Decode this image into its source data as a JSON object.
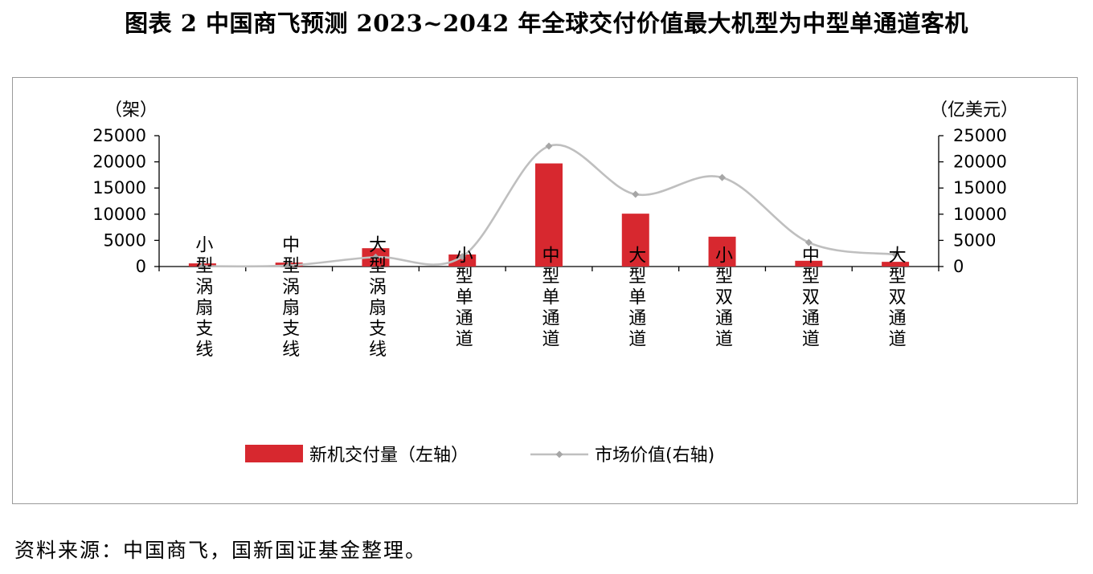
{
  "figure": {
    "title": "图表 2 中国商飞预测 2023~2042 年全球交付价值最大机型为中型单通道客机",
    "source": "资料来源：中国商飞，国新国证基金整理。"
  },
  "chart_data": {
    "type": "bar",
    "title": "",
    "categories": [
      "小型涡扇支线",
      "中型涡扇支线",
      "大型涡扇支线",
      "小型单通道",
      "中型单通道",
      "大型单通道",
      "小型双通道",
      "中型双通道",
      "大型双通道"
    ],
    "y_left": {
      "unit": "（架）",
      "ylim": [
        0,
        25000
      ],
      "ticks": [
        0,
        5000,
        10000,
        15000,
        20000,
        25000
      ]
    },
    "y_right": {
      "unit": "（亿美元）",
      "ylim": [
        0,
        25000
      ],
      "ticks": [
        0,
        5000,
        10000,
        15000,
        20000,
        25000
      ]
    },
    "series": [
      {
        "name": "新机交付量（左轴）",
        "type": "bar",
        "axis": "left",
        "color": "#d7282f",
        "values": [
          600,
          750,
          3500,
          2300,
          19700,
          10100,
          5700,
          1100,
          900
        ]
      },
      {
        "name": "市场价值(右轴)",
        "type": "line",
        "axis": "right",
        "color": "#bfbfbf",
        "marker_color": "#a6a6a6",
        "values": [
          50,
          200,
          1800,
          1900,
          23000,
          13800,
          17000,
          4600,
          2300
        ]
      }
    ],
    "grid": false,
    "legend_position": "bottom"
  }
}
